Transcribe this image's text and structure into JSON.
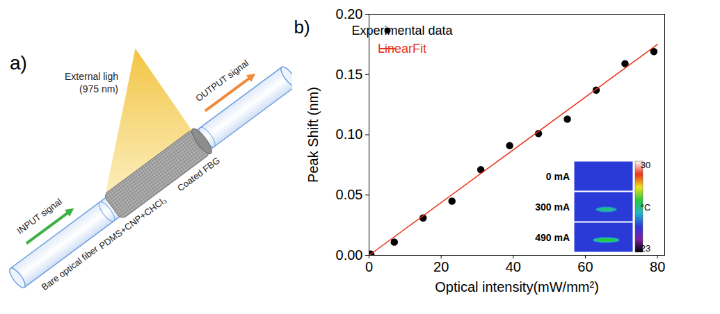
{
  "diagram": {
    "panel_label": "a)",
    "light_label": "External ligh",
    "light_wavelength": "(975 nm)",
    "input_label": "INPUT signal",
    "output_label": "OUTPUT signal",
    "coating_label": "PDMS+CNP+CHCl₃",
    "coated_label": "Coated FBG",
    "fiber_label": "Bare optical fiber"
  },
  "chart_data": {
    "type": "scatter",
    "panel_label": "b)",
    "x_label": "Optical intensity(mW/mm²)",
    "y_label": "Peak Shift (nm)",
    "xlim": [
      0,
      82
    ],
    "xticks": [
      0,
      20,
      40,
      60,
      80
    ],
    "ylim": [
      0,
      0.2
    ],
    "yticks": [
      {
        "value": 0,
        "label": "0.00"
      },
      {
        "value": 0.05,
        "label": "0.05"
      },
      {
        "value": 0.1,
        "label": "0.10"
      },
      {
        "value": 0.15,
        "label": "0.15"
      },
      {
        "value": 0.2,
        "label": "0.20"
      }
    ],
    "legend": "upper left",
    "grid": false,
    "series": [
      {
        "name": "Experimental data",
        "type": "scatter",
        "color": "#000000",
        "marker": "circle",
        "x": [
          0.5,
          7,
          15,
          23,
          31,
          39,
          47,
          55,
          63,
          71,
          79
        ],
        "values": [
          0.001,
          0.011,
          0.031,
          0.045,
          0.071,
          0.091,
          0.101,
          0.113,
          0.137,
          0.159,
          0.169
        ]
      },
      {
        "name": "LinearFit",
        "type": "line",
        "color": "#e8341c",
        "line_style": "solid",
        "x": [
          0,
          80
        ],
        "values": [
          0,
          0.175
        ]
      }
    ],
    "inset": {
      "images": [
        {
          "label": "0 mA",
          "background_temperature": 25,
          "peak_temperature": null
        },
        {
          "label": "300 mA",
          "background_temperature": 25,
          "peak_temperature": 26.5
        },
        {
          "label": "490 mA",
          "background_temperature": 25,
          "peak_temperature": 27
        }
      ],
      "colorbar": {
        "range": [
          23,
          30
        ],
        "ticks": [
          23,
          30
        ],
        "label": "°C"
      }
    }
  }
}
